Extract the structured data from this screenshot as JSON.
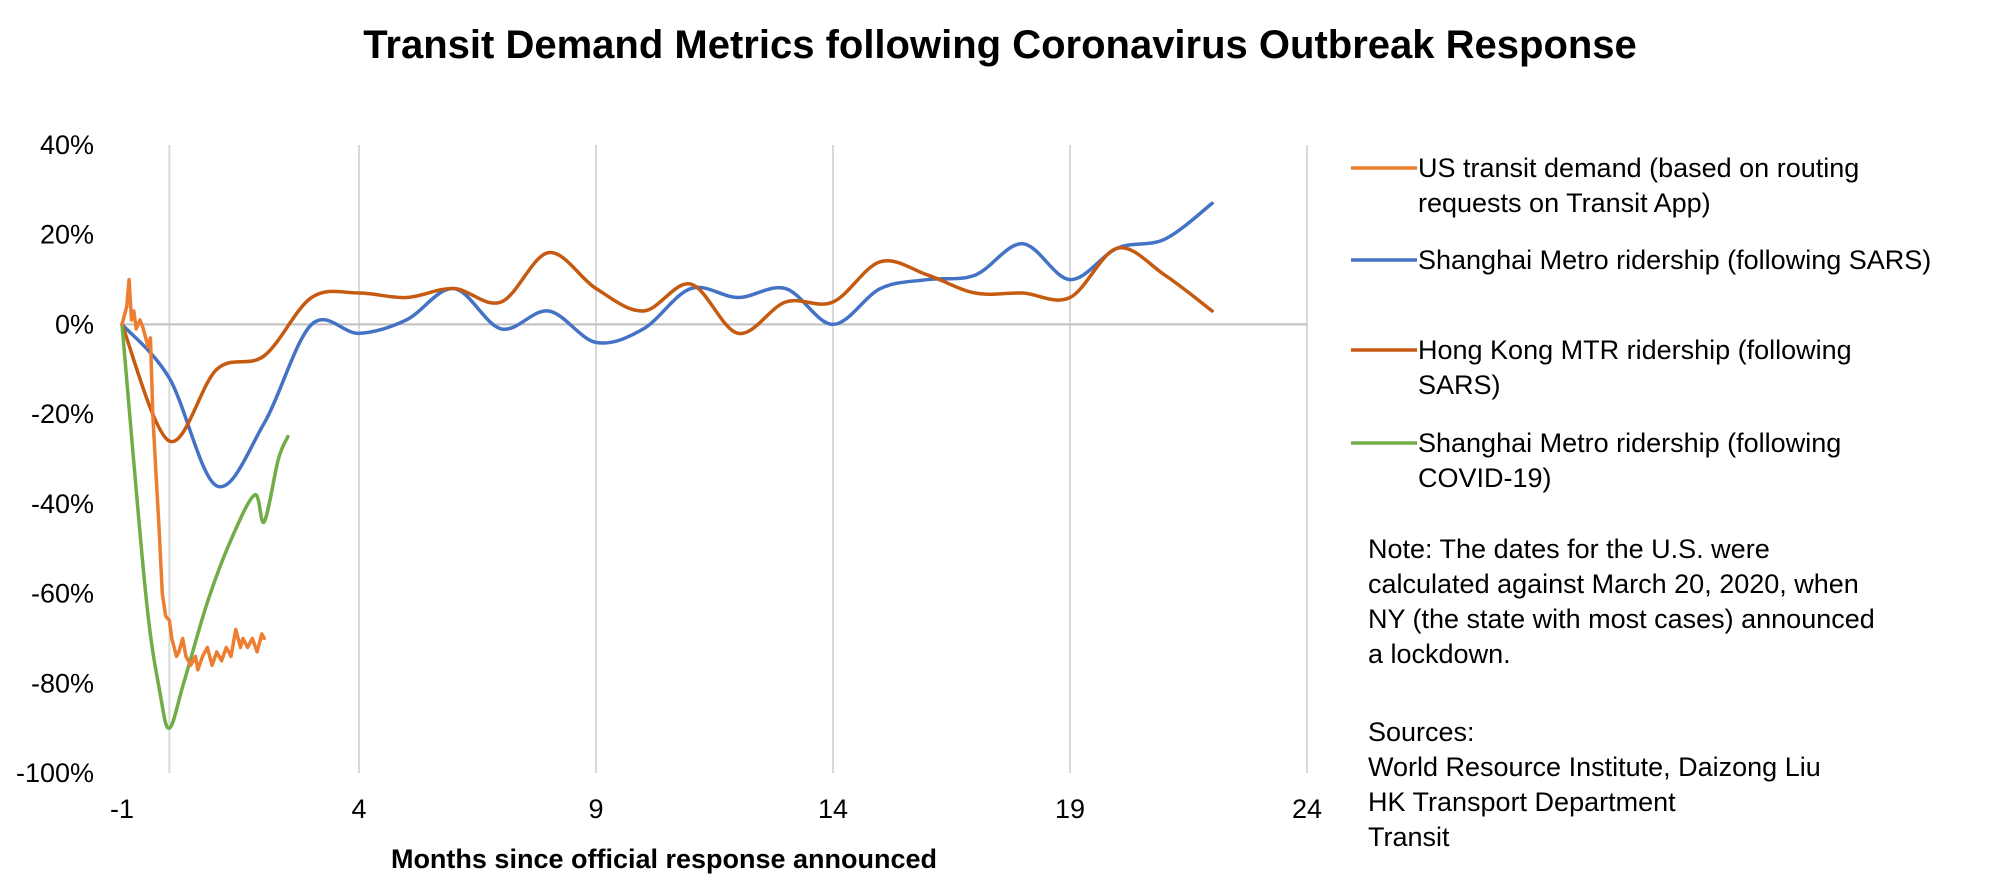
{
  "chart_data": {
    "type": "line",
    "title": "Transit Demand Metrics following Coronavirus Outbreak Response",
    "xlabel": "Months since official response announced",
    "ylabel": "",
    "xlim": [
      -1,
      24
    ],
    "ylim": [
      -100,
      40
    ],
    "x_ticks": [
      -1,
      4,
      9,
      14,
      19,
      24
    ],
    "y_ticks": [
      40,
      20,
      0,
      -20,
      -40,
      -60,
      -80,
      -100
    ],
    "y_tick_labels": [
      "40%",
      "20%",
      "0%",
      "-20%",
      "-40%",
      "-60%",
      "-80%",
      "-100%"
    ],
    "x_gridlines": [
      0,
      4,
      9,
      14,
      19,
      24
    ],
    "legend_position": "right",
    "series": [
      {
        "name": "US transit demand (based on routing requests on Transit App)",
        "color": "#ED7D31",
        "x": [
          -1.0,
          -0.9,
          -0.85,
          -0.8,
          -0.75,
          -0.7,
          -0.62,
          -0.55,
          -0.45,
          -0.4,
          -0.35,
          -0.3,
          -0.22,
          -0.15,
          -0.08,
          0.0,
          0.05,
          0.1,
          0.15,
          0.2,
          0.28,
          0.35,
          0.45,
          0.55,
          0.6,
          0.7,
          0.8,
          0.9,
          1.0,
          1.1,
          1.2,
          1.3,
          1.4,
          1.5,
          1.55,
          1.65,
          1.75,
          1.85,
          1.95,
          2.0
        ],
        "y": [
          0,
          4,
          10,
          1,
          3,
          -1,
          1,
          -1,
          -5,
          -3,
          -20,
          -30,
          -45,
          -60,
          -65,
          -66,
          -70,
          -72,
          -74,
          -73,
          -70,
          -74,
          -76,
          -74,
          -77,
          -74,
          -72,
          -76,
          -73,
          -75,
          -72,
          -74,
          -68,
          -72,
          -70,
          -72,
          -70,
          -73,
          -69,
          -70
        ],
        "smooth": false
      },
      {
        "name": "Shanghai Metro ridership (following SARS)",
        "color": "#4472C4",
        "x": [
          -1,
          0,
          1,
          2,
          3,
          4,
          5,
          6,
          7,
          8,
          9,
          10,
          11,
          12,
          13,
          14,
          15,
          16,
          17,
          18,
          19,
          20,
          21,
          22
        ],
        "y": [
          0,
          -12,
          -36,
          -22,
          0,
          -2,
          1,
          8,
          -1,
          3,
          -4,
          -1,
          8,
          6,
          8,
          0,
          8,
          10,
          11,
          18,
          10,
          17,
          19,
          27
        ],
        "smooth": true
      },
      {
        "name": "Hong Kong MTR ridership (following SARS)",
        "color": "#C55A11",
        "x": [
          -1,
          0,
          1,
          2,
          3,
          4,
          5,
          6,
          7,
          8,
          9,
          10,
          11,
          12,
          13,
          14,
          15,
          16,
          17,
          18,
          19,
          20,
          21,
          22
        ],
        "y": [
          0,
          -26,
          -10,
          -7,
          6,
          7,
          6,
          8,
          5,
          16,
          8,
          3,
          9,
          -2,
          5,
          5,
          14,
          11,
          7,
          7,
          6,
          17,
          11,
          3
        ],
        "smooth": true
      },
      {
        "name": "Shanghai Metro ridership (following COVID-19)",
        "color": "#70AD47",
        "x": [
          -1,
          -0.5,
          -0.2,
          0,
          0.3,
          0.8,
          1.3,
          1.8,
          2.0,
          2.3,
          2.5
        ],
        "y": [
          0,
          -60,
          -82,
          -90,
          -80,
          -62,
          -48,
          -38,
          -44,
          -30,
          -25
        ],
        "smooth": true
      }
    ],
    "legend": [
      {
        "lines": [
          "US transit demand (based on routing",
          "requests on Transit App)"
        ],
        "color": "#ED7D31"
      },
      {
        "lines": [
          "Shanghai Metro ridership (following SARS)"
        ],
        "color": "#4472C4"
      },
      {
        "lines": [
          "Hong Kong MTR ridership (following",
          "SARS)"
        ],
        "color": "#C55A11"
      },
      {
        "lines": [
          "Shanghai Metro ridership (following",
          "COVID-19)"
        ],
        "color": "#70AD47"
      }
    ],
    "annotations": {
      "note_lines": [
        "Note: The dates for the U.S. were",
        "calculated against March 20, 2020, when",
        "NY (the state with most cases) announced",
        "a lockdown."
      ],
      "sources_lines": [
        "Sources:",
        "World Resource Institute, Daizong Liu",
        "HK Transport Department",
        "Transit"
      ]
    }
  }
}
